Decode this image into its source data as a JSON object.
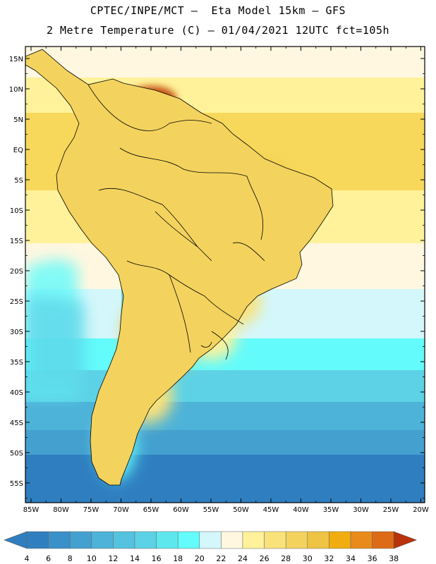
{
  "header": {
    "line1": "CPTEC/INPE/MCT –  Eta Model 15km – GFS",
    "line2": "2 Metre Temperature (C) – 01/04/2021 12UTC fct=105h"
  },
  "axes": {
    "lat_labels": [
      "15N",
      "10N",
      "5N",
      "EQ",
      "5S",
      "10S",
      "15S",
      "20S",
      "25S",
      "30S",
      "35S",
      "40S",
      "45S",
      "50S",
      "55S"
    ],
    "lon_labels": [
      "85W",
      "80W",
      "75W",
      "70W",
      "65W",
      "60W",
      "55W",
      "50W",
      "45W",
      "40W",
      "35W",
      "30W",
      "25W",
      "20W"
    ]
  },
  "colorbar": {
    "labels": [
      "4",
      "6",
      "8",
      "10",
      "12",
      "14",
      "16",
      "18",
      "20",
      "22",
      "24",
      "26",
      "28",
      "30",
      "32",
      "34",
      "36",
      "38"
    ],
    "colors": [
      "#2f7fc0",
      "#3a90c8",
      "#44a0cf",
      "#4eb3d8",
      "#55c2df",
      "#5dd2e6",
      "#5ee8ee",
      "#63fbfb",
      "#d3f7fb",
      "#fff7e0",
      "#fff29a",
      "#f9e27a",
      "#f3d35e",
      "#efc343",
      "#f1ad0f",
      "#e88a1c",
      "#dd6a16",
      "#c54b10",
      "#b8320a"
    ]
  },
  "chart_data": {
    "type": "heatmap",
    "title": "2 Metre Temperature (C) – 01/04/2021 12UTC fct=105h",
    "variable": "2 Metre Temperature",
    "units": "C",
    "model": "Eta Model 15km – GFS",
    "init": "01/04/2021 12UTC",
    "forecast_hour": 105,
    "lon_range": [
      -86,
      -20
    ],
    "lat_range": [
      -58,
      17
    ],
    "color_levels": [
      4,
      6,
      8,
      10,
      12,
      14,
      16,
      18,
      20,
      22,
      24,
      26,
      28,
      30,
      32,
      34,
      36,
      38
    ]
  }
}
